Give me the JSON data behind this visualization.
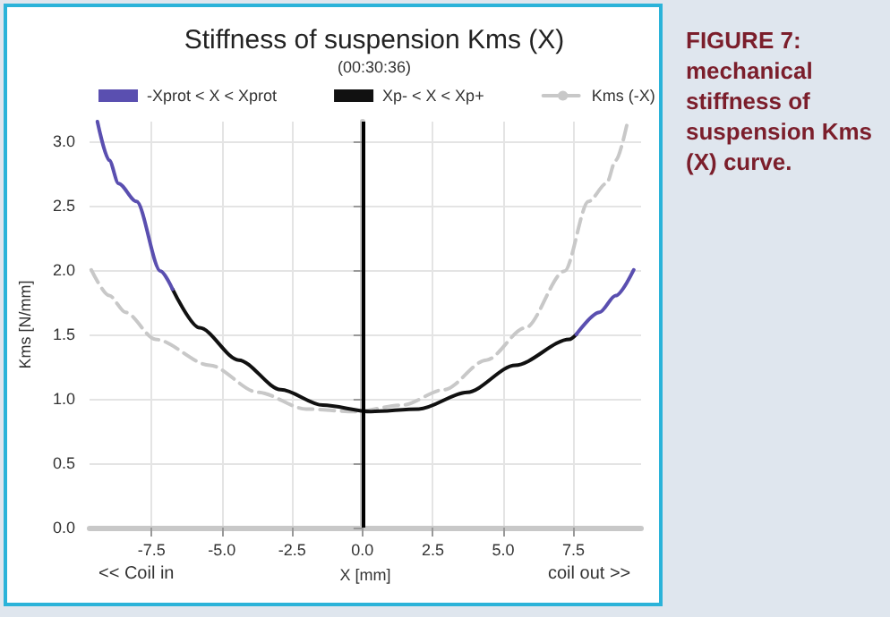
{
  "chart_data": {
    "type": "line",
    "title": "Stiffness of suspension Kms (X)",
    "subtitle": "(00:30:36)",
    "xlabel": "X [mm]",
    "ylabel": "Kms [N/mm]",
    "annotations": [
      "<< Coil in",
      "coil out >>",
      "FIGURE 7: mechanical stiffness of suspension Kms (X) curve."
    ],
    "xlim": [
      -9.7,
      9.9
    ],
    "ylim": [
      0,
      3.15
    ],
    "xticks": [
      -7.5,
      {
        "value": -5,
        "label": "-5.0"
      },
      -2.5,
      {
        "value": 0,
        "label": "0.0"
      },
      2.5,
      {
        "value": 5,
        "label": "5.0"
      },
      7.5
    ],
    "yticks": [
      {
        "value": 0,
        "label": "0.0"
      },
      0.5,
      {
        "value": 1,
        "label": "1.0"
      },
      1.5,
      {
        "value": 2,
        "label": "2.0"
      },
      2.5,
      {
        "value": 3,
        "label": "3.0"
      }
    ],
    "grid": true,
    "legend": "top",
    "marker": "none",
    "series": [
      {
        "name": "-Xprot < X < Xprot",
        "color": "#5a4fb0",
        "x": [
          -9.42,
          -9.0,
          -8.67,
          -8.03,
          -7.18,
          -6.75,
          0,
          7.6,
          8.42,
          9.0,
          9.64
        ],
        "values": [
          3.15,
          2.85,
          2.67,
          2.53,
          1.99,
          1.85,
          null,
          1.5,
          1.67,
          1.8,
          2.0
        ]
      },
      {
        "name": "Xp- < X < Xp+",
        "color": "#111111",
        "x": [
          -6.75,
          -5.79,
          -4.4,
          -2.9,
          -1.41,
          0.3,
          2.0,
          3.72,
          5.43,
          7.35,
          7.6
        ],
        "values": [
          1.85,
          1.55,
          1.3,
          1.07,
          0.95,
          0.9,
          0.92,
          1.05,
          1.26,
          1.46,
          1.5
        ]
      },
      {
        "name": "Kms (-X)",
        "color": "#c8c8c8",
        "line_style": "dashed",
        "x": [
          -9.64,
          -9.0,
          -8.42,
          -7.35,
          -5.43,
          -3.72,
          -2.0,
          -0.3,
          1.41,
          2.9,
          4.4,
          5.79,
          7.18,
          8.03,
          8.67,
          9.0,
          9.42
        ],
        "values": [
          2.0,
          1.8,
          1.67,
          1.46,
          1.26,
          1.05,
          0.92,
          0.9,
          0.95,
          1.07,
          1.3,
          1.55,
          1.99,
          2.53,
          2.67,
          2.85,
          3.15
        ]
      }
    ],
    "ref_lines": [
      {
        "axis": "x",
        "value": 0,
        "label": null,
        "color": "#000000"
      }
    ]
  }
}
